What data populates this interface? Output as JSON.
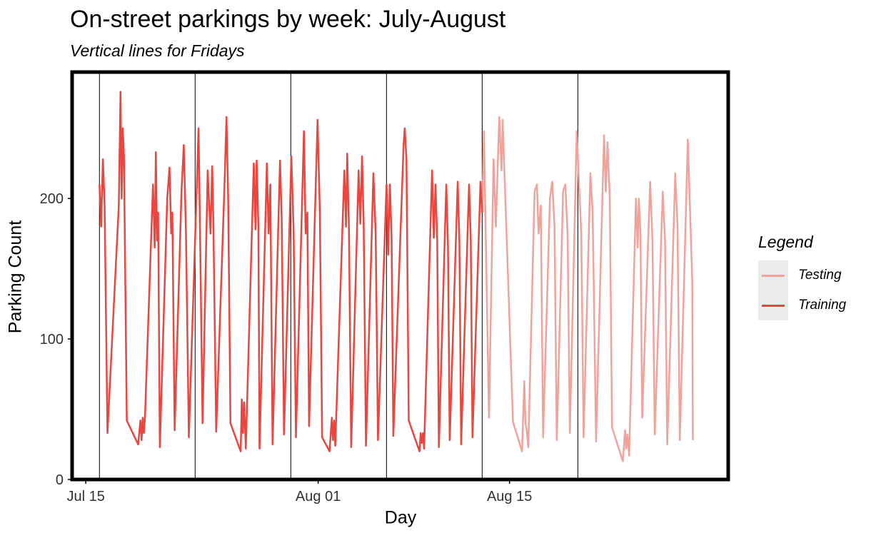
{
  "chart_data": {
    "type": "line",
    "title": "On-street parkings by week: July-August",
    "subtitle": "Vertical lines for Fridays",
    "xlabel": "Day",
    "ylabel": "Parking Count",
    "xlim": [
      "2022-07-14",
      "2022-08-31"
    ],
    "ylim": [
      0,
      290
    ],
    "x_ticks": [
      {
        "label": "Jul 15",
        "date": "2022-07-15"
      },
      {
        "label": "Aug 01",
        "date": "2022-08-01"
      },
      {
        "label": "Aug 15",
        "date": "2022-08-15"
      }
    ],
    "y_ticks": [
      0,
      100,
      200
    ],
    "vlines": [
      "2022-07-16",
      "2022-07-23",
      "2022-07-30",
      "2022-08-06",
      "2022-08-13",
      "2022-08-20"
    ],
    "legend_title": "Legend",
    "legend_position": "right",
    "series": [
      {
        "name": "Testing",
        "color": "#f0a39b",
        "points": [
          [
            "2022-08-13 00:00",
            190
          ],
          [
            "2022-08-13 03:00",
            248
          ],
          [
            "2022-08-13 12:00",
            44
          ],
          [
            "2022-08-13 20:00",
            228
          ],
          [
            "2022-08-14 00:00",
            180
          ],
          [
            "2022-08-14 06:00",
            258
          ],
          [
            "2022-08-14 10:00",
            220
          ],
          [
            "2022-08-14 12:00",
            256
          ],
          [
            "2022-08-14 15:00",
            220
          ],
          [
            "2022-08-15 06:00",
            41
          ],
          [
            "2022-08-15 22:00",
            20
          ],
          [
            "2022-08-16 02:00",
            70
          ],
          [
            "2022-08-16 04:00",
            40
          ],
          [
            "2022-08-16 06:00",
            36
          ],
          [
            "2022-08-16 09:00",
            23
          ],
          [
            "2022-08-16 20:00",
            205
          ],
          [
            "2022-08-17 00:00",
            210
          ],
          [
            "2022-08-17 03:00",
            175
          ],
          [
            "2022-08-17 07:00",
            195
          ],
          [
            "2022-08-17 11:00",
            30
          ],
          [
            "2022-08-17 23:00",
            200
          ],
          [
            "2022-08-18 03:00",
            212
          ],
          [
            "2022-08-18 07:00",
            180
          ],
          [
            "2022-08-18 11:00",
            28
          ],
          [
            "2022-08-18 22:00",
            205
          ],
          [
            "2022-08-19 02:00",
            210
          ],
          [
            "2022-08-19 06:00",
            175
          ],
          [
            "2022-08-19 10:00",
            33
          ],
          [
            "2022-08-19 22:00",
            248
          ],
          [
            "2022-08-20 02:00",
            210
          ],
          [
            "2022-08-20 06:00",
            175
          ],
          [
            "2022-08-20 10:00",
            30
          ],
          [
            "2022-08-20 22:00",
            218
          ],
          [
            "2022-08-21 02:00",
            190
          ],
          [
            "2022-08-21 08:00",
            27
          ],
          [
            "2022-08-21 22:00",
            245
          ],
          [
            "2022-08-22 01:00",
            205
          ],
          [
            "2022-08-22 04:00",
            240
          ],
          [
            "2022-08-22 08:00",
            200
          ],
          [
            "2022-08-22 12:00",
            37
          ],
          [
            "2022-08-23 07:00",
            13
          ],
          [
            "2022-08-23 11:00",
            35
          ],
          [
            "2022-08-23 13:00",
            22
          ],
          [
            "2022-08-23 15:00",
            32
          ],
          [
            "2022-08-23 18:00",
            17
          ],
          [
            "2022-08-24 06:00",
            200
          ],
          [
            "2022-08-24 09:00",
            165
          ],
          [
            "2022-08-24 11:00",
            200
          ],
          [
            "2022-08-24 14:00",
            175
          ],
          [
            "2022-08-24 17:00",
            44
          ],
          [
            "2022-08-25 07:00",
            212
          ],
          [
            "2022-08-25 11:00",
            170
          ],
          [
            "2022-08-25 15:00",
            32
          ],
          [
            "2022-08-26 05:00",
            205
          ],
          [
            "2022-08-26 09:00",
            170
          ],
          [
            "2022-08-26 13:00",
            25
          ],
          [
            "2022-08-27 03:00",
            218
          ],
          [
            "2022-08-27 07:00",
            180
          ],
          [
            "2022-08-27 11:00",
            28
          ],
          [
            "2022-08-28 01:00",
            242
          ],
          [
            "2022-08-28 05:00",
            190
          ],
          [
            "2022-08-28 09:00",
            140
          ],
          [
            "2022-08-28 10:00",
            28
          ]
        ]
      },
      {
        "name": "Training",
        "color": "#e8463f",
        "points": [
          [
            "2022-07-16 00:00",
            210
          ],
          [
            "2022-07-16 03:00",
            180
          ],
          [
            "2022-07-16 06:00",
            228
          ],
          [
            "2022-07-16 09:00",
            195
          ],
          [
            "2022-07-16 14:00",
            33
          ],
          [
            "2022-07-17 10:00",
            195
          ],
          [
            "2022-07-17 13:00",
            276
          ],
          [
            "2022-07-17 15:00",
            200
          ],
          [
            "2022-07-17 17:00",
            250
          ],
          [
            "2022-07-17 19:00",
            230
          ],
          [
            "2022-07-18 00:00",
            42
          ],
          [
            "2022-07-18 20:00",
            25
          ],
          [
            "2022-07-19 00:00",
            42
          ],
          [
            "2022-07-19 02:00",
            28
          ],
          [
            "2022-07-19 04:00",
            44
          ],
          [
            "2022-07-19 06:00",
            33
          ],
          [
            "2022-07-19 08:00",
            45
          ],
          [
            "2022-07-19 22:00",
            210
          ],
          [
            "2022-07-20 01:00",
            165
          ],
          [
            "2022-07-20 03:00",
            233
          ],
          [
            "2022-07-20 05:00",
            170
          ],
          [
            "2022-07-20 07:00",
            190
          ],
          [
            "2022-07-20 10:00",
            23
          ],
          [
            "2022-07-20 23:00",
            200
          ],
          [
            "2022-07-21 03:00",
            222
          ],
          [
            "2022-07-21 06:00",
            175
          ],
          [
            "2022-07-21 08:00",
            190
          ],
          [
            "2022-07-21 12:00",
            35
          ],
          [
            "2022-07-22 00:00",
            205
          ],
          [
            "2022-07-22 04:00",
            238
          ],
          [
            "2022-07-22 08:00",
            175
          ],
          [
            "2022-07-22 13:00",
            30
          ],
          [
            "2022-07-23 03:00",
            210
          ],
          [
            "2022-07-23 06:00",
            250
          ],
          [
            "2022-07-23 09:00",
            165
          ],
          [
            "2022-07-23 13:00",
            40
          ],
          [
            "2022-07-23 22:00",
            220
          ],
          [
            "2022-07-24 03:00",
            175
          ],
          [
            "2022-07-24 06:00",
            223
          ],
          [
            "2022-07-24 08:00",
            185
          ],
          [
            "2022-07-24 13:00",
            34
          ],
          [
            "2022-07-25 04:00",
            215
          ],
          [
            "2022-07-25 07:00",
            258
          ],
          [
            "2022-07-25 10:00",
            200
          ],
          [
            "2022-07-25 14:00",
            40
          ],
          [
            "2022-07-26 08:00",
            20
          ],
          [
            "2022-07-26 10:00",
            57
          ],
          [
            "2022-07-26 12:00",
            33
          ],
          [
            "2022-07-26 14:00",
            55
          ],
          [
            "2022-07-26 17:00",
            22
          ],
          [
            "2022-07-27 07:00",
            225
          ],
          [
            "2022-07-27 10:00",
            178
          ],
          [
            "2022-07-27 12:00",
            227
          ],
          [
            "2022-07-27 15:00",
            180
          ],
          [
            "2022-07-27 17:00",
            22
          ],
          [
            "2022-07-28 06:00",
            225
          ],
          [
            "2022-07-28 09:00",
            175
          ],
          [
            "2022-07-28 12:00",
            210
          ],
          [
            "2022-07-28 16:00",
            25
          ],
          [
            "2022-07-29 05:00",
            227
          ],
          [
            "2022-07-29 08:00",
            185
          ],
          [
            "2022-07-29 12:00",
            32
          ],
          [
            "2022-07-30 01:00",
            230
          ],
          [
            "2022-07-30 05:00",
            175
          ],
          [
            "2022-07-30 09:00",
            30
          ],
          [
            "2022-07-30 23:00",
            248
          ],
          [
            "2022-07-31 02:00",
            175
          ],
          [
            "2022-07-31 05:00",
            190
          ],
          [
            "2022-07-31 08:00",
            38
          ],
          [
            "2022-07-31 23:00",
            256
          ],
          [
            "2022-08-01 03:00",
            190
          ],
          [
            "2022-08-01 07:00",
            30
          ],
          [
            "2022-08-01 20:00",
            20
          ],
          [
            "2022-08-02 00:00",
            44
          ],
          [
            "2022-08-02 02:00",
            28
          ],
          [
            "2022-08-02 04:00",
            42
          ],
          [
            "2022-08-02 06:00",
            24
          ],
          [
            "2022-08-02 22:00",
            220
          ],
          [
            "2022-08-03 01:00",
            180
          ],
          [
            "2022-08-03 03:00",
            232
          ],
          [
            "2022-08-03 06:00",
            180
          ],
          [
            "2022-08-03 10:00",
            23
          ],
          [
            "2022-08-03 23:00",
            220
          ],
          [
            "2022-08-04 02:00",
            182
          ],
          [
            "2022-08-04 05:00",
            230
          ],
          [
            "2022-08-04 08:00",
            182
          ],
          [
            "2022-08-04 12:00",
            24
          ],
          [
            "2022-08-05 01:00",
            218
          ],
          [
            "2022-08-05 05:00",
            175
          ],
          [
            "2022-08-05 09:00",
            28
          ],
          [
            "2022-08-06 00:00",
            210
          ],
          [
            "2022-08-06 03:00",
            160
          ],
          [
            "2022-08-06 06:00",
            210
          ],
          [
            "2022-08-06 09:00",
            172
          ],
          [
            "2022-08-06 12:00",
            31
          ],
          [
            "2022-08-07 06:00",
            238
          ],
          [
            "2022-08-07 08:00",
            250
          ],
          [
            "2022-08-07 11:00",
            228
          ],
          [
            "2022-08-07 15:00",
            42
          ],
          [
            "2022-08-08 10:00",
            20
          ],
          [
            "2022-08-08 12:00",
            33
          ],
          [
            "2022-08-08 14:00",
            26
          ],
          [
            "2022-08-08 16:00",
            33
          ],
          [
            "2022-08-08 18:00",
            22
          ],
          [
            "2022-08-09 08:00",
            220
          ],
          [
            "2022-08-09 11:00",
            172
          ],
          [
            "2022-08-09 14:00",
            210
          ],
          [
            "2022-08-09 17:00",
            170
          ],
          [
            "2022-08-09 20:00",
            23
          ],
          [
            "2022-08-10 09:00",
            210
          ],
          [
            "2022-08-10 12:00",
            165
          ],
          [
            "2022-08-10 15:00",
            28
          ],
          [
            "2022-08-11 05:00",
            212
          ],
          [
            "2022-08-11 08:00",
            168
          ],
          [
            "2022-08-11 11:00",
            25
          ],
          [
            "2022-08-12 01:00",
            210
          ],
          [
            "2022-08-12 04:00",
            170
          ],
          [
            "2022-08-12 07:00",
            30
          ],
          [
            "2022-08-12 21:00",
            212
          ],
          [
            "2022-08-13 00:00",
            190
          ]
        ]
      }
    ]
  }
}
